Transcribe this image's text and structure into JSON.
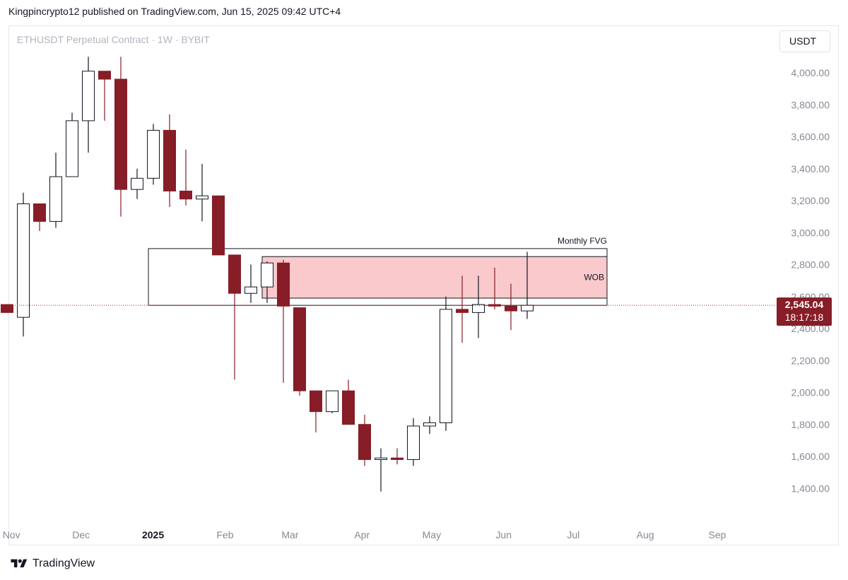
{
  "header": {
    "publisher_line": "Kingpincrypto12 published on TradingView.com, Jun 15, 2025 09:42 UTC+4"
  },
  "chart_header": {
    "symbol": "ETHUSDT Perpetual Contract · 1W · BYBIT",
    "currency": "USDT"
  },
  "footer": {
    "brand": "TradingView"
  },
  "colors": {
    "bear": "#861d27",
    "bull": "#ffffff",
    "outline": "#131722",
    "zone_fill": "#f9c9cc",
    "price_tag": "#861d27",
    "axis_text": "#868993",
    "price_line": "#b71c1c"
  },
  "chart_data": {
    "type": "candlestick",
    "y_axis": {
      "ticks": [
        4000,
        3800,
        3600,
        3400,
        3200,
        3000,
        2800,
        2600,
        2400,
        2200,
        2000,
        1800,
        1600,
        1400
      ],
      "tick_labels": [
        "4,000.00",
        "3,800.00",
        "3,600.00",
        "3,400.00",
        "3,200.00",
        "3,000.00",
        "2,800.00",
        "2,600.00",
        "2,400.00",
        "2,200.00",
        "2,000.00",
        "1,800.00",
        "1,600.00",
        "1,400.00"
      ]
    },
    "x_axis": {
      "labels": [
        "Nov",
        "Dec",
        "2025",
        "Feb",
        "Mar",
        "Apr",
        "May",
        "Jun",
        "Jul",
        "Aug",
        "Sep"
      ],
      "label_dates": [
        "2024-11-01",
        "2024-12-01",
        "2025-01-01",
        "2025-02-01",
        "2025-03-01",
        "2025-04-01",
        "2025-05-01",
        "2025-06-01",
        "2025-07-01",
        "2025-08-01",
        "2025-09-01"
      ]
    },
    "candles": [
      {
        "week": "2024-10-28",
        "o": 2550,
        "h": 2550,
        "l": 2500,
        "c": 2500
      },
      {
        "week": "2024-11-04",
        "o": 2470,
        "h": 3250,
        "l": 2350,
        "c": 3180
      },
      {
        "week": "2024-11-11",
        "o": 3180,
        "h": 3180,
        "l": 3010,
        "c": 3070
      },
      {
        "week": "2024-11-18",
        "o": 3070,
        "h": 3500,
        "l": 3030,
        "c": 3350
      },
      {
        "week": "2024-11-25",
        "o": 3350,
        "h": 3750,
        "l": 3350,
        "c": 3700
      },
      {
        "week": "2024-12-02",
        "o": 3700,
        "h": 4100,
        "l": 3500,
        "c": 4010
      },
      {
        "week": "2024-12-09",
        "o": 4010,
        "h": 4010,
        "l": 3700,
        "c": 3960
      },
      {
        "week": "2024-12-16",
        "o": 3960,
        "h": 4100,
        "l": 3100,
        "c": 3270
      },
      {
        "week": "2024-12-23",
        "o": 3270,
        "h": 3400,
        "l": 3210,
        "c": 3340
      },
      {
        "week": "2024-12-30",
        "o": 3340,
        "h": 3680,
        "l": 3300,
        "c": 3640
      },
      {
        "week": "2025-01-06",
        "o": 3640,
        "h": 3740,
        "l": 3160,
        "c": 3260
      },
      {
        "week": "2025-01-13",
        "o": 3260,
        "h": 3520,
        "l": 3170,
        "c": 3210
      },
      {
        "week": "2025-01-20",
        "o": 3210,
        "h": 3430,
        "l": 3070,
        "c": 3230
      },
      {
        "week": "2025-01-27",
        "o": 3230,
        "h": 3230,
        "l": 2870,
        "c": 2860
      },
      {
        "week": "2025-02-03",
        "o": 2860,
        "h": 2860,
        "l": 2080,
        "c": 2620
      },
      {
        "week": "2025-02-10",
        "o": 2620,
        "h": 2800,
        "l": 2560,
        "c": 2660
      },
      {
        "week": "2025-02-17",
        "o": 2660,
        "h": 2820,
        "l": 2560,
        "c": 2810
      },
      {
        "week": "2025-02-24",
        "o": 2810,
        "h": 2830,
        "l": 2060,
        "c": 2540
      },
      {
        "week": "2025-03-03",
        "o": 2530,
        "h": 2530,
        "l": 1980,
        "c": 2010
      },
      {
        "week": "2025-03-10",
        "o": 2010,
        "h": 2010,
        "l": 1750,
        "c": 1880
      },
      {
        "week": "2025-03-17",
        "o": 1880,
        "h": 2010,
        "l": 1870,
        "c": 2010
      },
      {
        "week": "2025-03-24",
        "o": 2010,
        "h": 2080,
        "l": 1800,
        "c": 1800
      },
      {
        "week": "2025-03-31",
        "o": 1800,
        "h": 1860,
        "l": 1540,
        "c": 1580
      },
      {
        "week": "2025-04-07",
        "o": 1580,
        "h": 1650,
        "l": 1380,
        "c": 1590
      },
      {
        "week": "2025-04-14",
        "o": 1590,
        "h": 1650,
        "l": 1550,
        "c": 1580
      },
      {
        "week": "2025-04-21",
        "o": 1580,
        "h": 1840,
        "l": 1540,
        "c": 1790
      },
      {
        "week": "2025-04-28",
        "o": 1790,
        "h": 1850,
        "l": 1740,
        "c": 1810
      },
      {
        "week": "2025-05-05",
        "o": 1810,
        "h": 2600,
        "l": 1760,
        "c": 2520
      },
      {
        "week": "2025-05-12",
        "o": 2520,
        "h": 2730,
        "l": 2310,
        "c": 2500
      },
      {
        "week": "2025-05-19",
        "o": 2500,
        "h": 2730,
        "l": 2340,
        "c": 2550
      },
      {
        "week": "2025-05-26",
        "o": 2550,
        "h": 2780,
        "l": 2520,
        "c": 2540
      },
      {
        "week": "2025-06-02",
        "o": 2540,
        "h": 2680,
        "l": 2390,
        "c": 2510
      },
      {
        "week": "2025-06-09",
        "o": 2510,
        "h": 2880,
        "l": 2460,
        "c": 2545.04
      }
    ],
    "zones": [
      {
        "label": "Monthly FVG",
        "start": "2024-12-30",
        "end": "2025-07-01",
        "top": 2900,
        "bottom": 2545,
        "fill": "#ffffff"
      },
      {
        "label": "WOB",
        "start": "2025-02-17",
        "end": "2025-07-01",
        "top": 2850,
        "bottom": 2590,
        "fill": "#f9c9cc"
      }
    ],
    "current_price": {
      "value": 2545.04,
      "label": "2,545.04",
      "countdown": "18:17:18"
    }
  }
}
